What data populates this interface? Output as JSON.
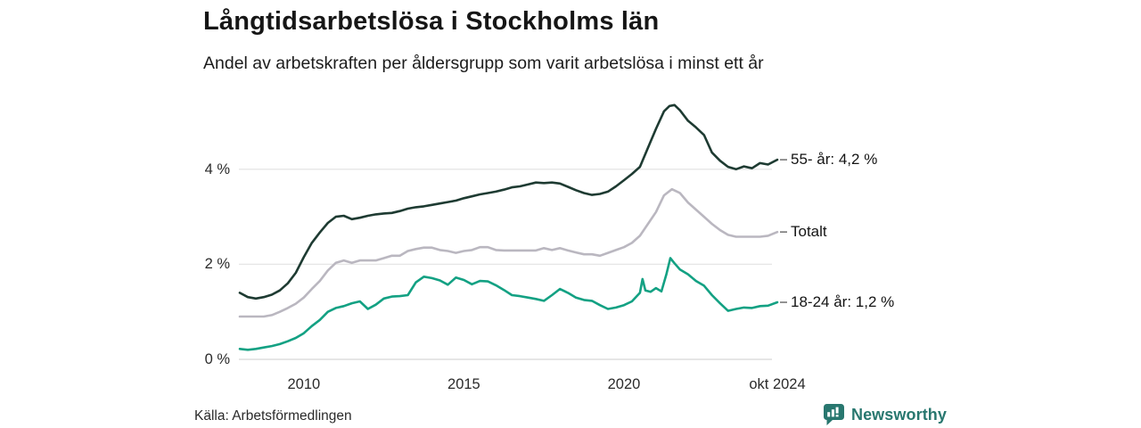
{
  "header": {
    "title": "Långtidsarbetslösa i Stockholms län",
    "subtitle": "Andel av arbetskraften per åldersgrupp som varit arbetslösa i minst ett år"
  },
  "footer": {
    "source": "Källa: Arbetsförmedlingen",
    "brand": "Newsworthy"
  },
  "colors": {
    "series_55": "#1e3b32",
    "series_total": "#bab7c0",
    "series_18_24": "#13a183",
    "gridline": "#e6e6e6",
    "zeroline": "#d8d8d8",
    "connector": "#6f6f6f",
    "brand_teal": "#28776f"
  },
  "chart_data": {
    "type": "line",
    "title": "Långtidsarbetslösa i Stockholms län",
    "subtitle": "Andel av arbetskraften per åldersgrupp som varit arbetslösa i minst ett år",
    "unit": "% av arbetskraften",
    "grid": "horizontal",
    "legend_position": "right of line ends",
    "x_range": {
      "min": 2008.0,
      "max": 2024.79
    },
    "y_range": {
      "min": 0,
      "max": 5.6
    },
    "x_ticks": [
      {
        "t": 2010,
        "label": "2010"
      },
      {
        "t": 2015,
        "label": "2015"
      },
      {
        "t": 2020,
        "label": "2020"
      },
      {
        "t": 2024.79,
        "label": "okt 2024"
      }
    ],
    "y_ticks": [
      {
        "v": 0,
        "label": "0 %"
      },
      {
        "v": 2,
        "label": "2 %"
      },
      {
        "v": 4,
        "label": "4 %"
      }
    ],
    "series": [
      {
        "name": "55- år",
        "legend_label": "55- år: 4,2 %",
        "end_value": 4.2,
        "color": "#1e3b32",
        "points": [
          [
            2008.0,
            1.4
          ],
          [
            2008.25,
            1.31
          ],
          [
            2008.5,
            1.28
          ],
          [
            2008.75,
            1.31
          ],
          [
            2009.0,
            1.36
          ],
          [
            2009.25,
            1.45
          ],
          [
            2009.5,
            1.6
          ],
          [
            2009.75,
            1.82
          ],
          [
            2010.0,
            2.15
          ],
          [
            2010.25,
            2.45
          ],
          [
            2010.5,
            2.67
          ],
          [
            2010.75,
            2.87
          ],
          [
            2011.0,
            3.0
          ],
          [
            2011.25,
            3.02
          ],
          [
            2011.5,
            2.95
          ],
          [
            2011.75,
            2.98
          ],
          [
            2012.0,
            3.02
          ],
          [
            2012.25,
            3.05
          ],
          [
            2012.5,
            3.07
          ],
          [
            2012.75,
            3.08
          ],
          [
            2013.0,
            3.12
          ],
          [
            2013.25,
            3.17
          ],
          [
            2013.5,
            3.2
          ],
          [
            2013.75,
            3.22
          ],
          [
            2014.0,
            3.25
          ],
          [
            2014.25,
            3.28
          ],
          [
            2014.5,
            3.31
          ],
          [
            2014.75,
            3.34
          ],
          [
            2015.0,
            3.39
          ],
          [
            2015.25,
            3.43
          ],
          [
            2015.5,
            3.47
          ],
          [
            2015.75,
            3.5
          ],
          [
            2016.0,
            3.53
          ],
          [
            2016.25,
            3.57
          ],
          [
            2016.5,
            3.62
          ],
          [
            2016.75,
            3.64
          ],
          [
            2017.0,
            3.68
          ],
          [
            2017.25,
            3.72
          ],
          [
            2017.5,
            3.71
          ],
          [
            2017.75,
            3.72
          ],
          [
            2018.0,
            3.7
          ],
          [
            2018.25,
            3.63
          ],
          [
            2018.5,
            3.56
          ],
          [
            2018.75,
            3.5
          ],
          [
            2019.0,
            3.46
          ],
          [
            2019.25,
            3.48
          ],
          [
            2019.5,
            3.53
          ],
          [
            2019.75,
            3.64
          ],
          [
            2020.0,
            3.77
          ],
          [
            2020.25,
            3.9
          ],
          [
            2020.5,
            4.05
          ],
          [
            2020.75,
            4.45
          ],
          [
            2021.0,
            4.85
          ],
          [
            2021.25,
            5.22
          ],
          [
            2021.42,
            5.33
          ],
          [
            2021.58,
            5.35
          ],
          [
            2021.75,
            5.24
          ],
          [
            2022.0,
            5.02
          ],
          [
            2022.25,
            4.88
          ],
          [
            2022.5,
            4.72
          ],
          [
            2022.75,
            4.35
          ],
          [
            2023.0,
            4.18
          ],
          [
            2023.25,
            4.05
          ],
          [
            2023.5,
            4.0
          ],
          [
            2023.75,
            4.06
          ],
          [
            2024.0,
            4.02
          ],
          [
            2024.25,
            4.13
          ],
          [
            2024.5,
            4.1
          ],
          [
            2024.79,
            4.2
          ]
        ]
      },
      {
        "name": "Totalt",
        "legend_label": "Totalt",
        "end_value": 2.68,
        "color": "#bab7c0",
        "points": [
          [
            2008.0,
            0.9
          ],
          [
            2008.25,
            0.9
          ],
          [
            2008.5,
            0.9
          ],
          [
            2008.75,
            0.9
          ],
          [
            2009.0,
            0.93
          ],
          [
            2009.25,
            1.0
          ],
          [
            2009.5,
            1.08
          ],
          [
            2009.75,
            1.17
          ],
          [
            2010.0,
            1.3
          ],
          [
            2010.25,
            1.48
          ],
          [
            2010.5,
            1.65
          ],
          [
            2010.75,
            1.87
          ],
          [
            2011.0,
            2.03
          ],
          [
            2011.25,
            2.08
          ],
          [
            2011.5,
            2.03
          ],
          [
            2011.75,
            2.08
          ],
          [
            2012.0,
            2.08
          ],
          [
            2012.25,
            2.08
          ],
          [
            2012.5,
            2.13
          ],
          [
            2012.75,
            2.18
          ],
          [
            2013.0,
            2.18
          ],
          [
            2013.25,
            2.28
          ],
          [
            2013.5,
            2.32
          ],
          [
            2013.75,
            2.35
          ],
          [
            2014.0,
            2.35
          ],
          [
            2014.25,
            2.3
          ],
          [
            2014.5,
            2.28
          ],
          [
            2014.75,
            2.24
          ],
          [
            2015.0,
            2.28
          ],
          [
            2015.25,
            2.3
          ],
          [
            2015.5,
            2.36
          ],
          [
            2015.75,
            2.36
          ],
          [
            2016.0,
            2.3
          ],
          [
            2016.25,
            2.29
          ],
          [
            2016.5,
            2.29
          ],
          [
            2016.75,
            2.29
          ],
          [
            2017.0,
            2.29
          ],
          [
            2017.25,
            2.29
          ],
          [
            2017.5,
            2.34
          ],
          [
            2017.75,
            2.3
          ],
          [
            2018.0,
            2.34
          ],
          [
            2018.25,
            2.29
          ],
          [
            2018.5,
            2.25
          ],
          [
            2018.75,
            2.21
          ],
          [
            2019.0,
            2.21
          ],
          [
            2019.25,
            2.18
          ],
          [
            2019.5,
            2.24
          ],
          [
            2019.75,
            2.3
          ],
          [
            2020.0,
            2.36
          ],
          [
            2020.25,
            2.45
          ],
          [
            2020.5,
            2.6
          ],
          [
            2020.75,
            2.85
          ],
          [
            2021.0,
            3.1
          ],
          [
            2021.25,
            3.45
          ],
          [
            2021.5,
            3.58
          ],
          [
            2021.75,
            3.5
          ],
          [
            2022.0,
            3.3
          ],
          [
            2022.25,
            3.15
          ],
          [
            2022.5,
            3.0
          ],
          [
            2022.75,
            2.85
          ],
          [
            2023.0,
            2.72
          ],
          [
            2023.25,
            2.62
          ],
          [
            2023.5,
            2.58
          ],
          [
            2023.75,
            2.58
          ],
          [
            2024.0,
            2.58
          ],
          [
            2024.25,
            2.58
          ],
          [
            2024.5,
            2.6
          ],
          [
            2024.79,
            2.68
          ]
        ]
      },
      {
        "name": "18-24 år",
        "legend_label": "18-24 år: 1,2 %",
        "end_value": 1.2,
        "color": "#13a183",
        "points": [
          [
            2008.0,
            0.22
          ],
          [
            2008.25,
            0.2
          ],
          [
            2008.5,
            0.22
          ],
          [
            2008.75,
            0.25
          ],
          [
            2009.0,
            0.28
          ],
          [
            2009.25,
            0.32
          ],
          [
            2009.5,
            0.38
          ],
          [
            2009.75,
            0.45
          ],
          [
            2010.0,
            0.55
          ],
          [
            2010.25,
            0.7
          ],
          [
            2010.5,
            0.83
          ],
          [
            2010.75,
            1.0
          ],
          [
            2011.0,
            1.08
          ],
          [
            2011.25,
            1.12
          ],
          [
            2011.5,
            1.18
          ],
          [
            2011.75,
            1.22
          ],
          [
            2012.0,
            1.06
          ],
          [
            2012.25,
            1.15
          ],
          [
            2012.5,
            1.28
          ],
          [
            2012.75,
            1.32
          ],
          [
            2013.0,
            1.33
          ],
          [
            2013.25,
            1.35
          ],
          [
            2013.5,
            1.62
          ],
          [
            2013.75,
            1.74
          ],
          [
            2014.0,
            1.71
          ],
          [
            2014.25,
            1.66
          ],
          [
            2014.5,
            1.57
          ],
          [
            2014.75,
            1.72
          ],
          [
            2015.0,
            1.67
          ],
          [
            2015.25,
            1.58
          ],
          [
            2015.5,
            1.65
          ],
          [
            2015.75,
            1.64
          ],
          [
            2016.0,
            1.56
          ],
          [
            2016.25,
            1.46
          ],
          [
            2016.5,
            1.35
          ],
          [
            2016.75,
            1.33
          ],
          [
            2017.0,
            1.3
          ],
          [
            2017.25,
            1.27
          ],
          [
            2017.5,
            1.23
          ],
          [
            2017.75,
            1.35
          ],
          [
            2018.0,
            1.48
          ],
          [
            2018.25,
            1.4
          ],
          [
            2018.5,
            1.3
          ],
          [
            2018.75,
            1.25
          ],
          [
            2019.0,
            1.23
          ],
          [
            2019.25,
            1.14
          ],
          [
            2019.5,
            1.06
          ],
          [
            2019.75,
            1.09
          ],
          [
            2020.0,
            1.14
          ],
          [
            2020.25,
            1.22
          ],
          [
            2020.5,
            1.4
          ],
          [
            2020.58,
            1.69
          ],
          [
            2020.67,
            1.45
          ],
          [
            2020.83,
            1.42
          ],
          [
            2021.0,
            1.5
          ],
          [
            2021.17,
            1.43
          ],
          [
            2021.33,
            1.8
          ],
          [
            2021.45,
            2.13
          ],
          [
            2021.58,
            2.02
          ],
          [
            2021.75,
            1.89
          ],
          [
            2022.0,
            1.79
          ],
          [
            2022.25,
            1.65
          ],
          [
            2022.5,
            1.55
          ],
          [
            2022.75,
            1.35
          ],
          [
            2023.0,
            1.18
          ],
          [
            2023.25,
            1.02
          ],
          [
            2023.5,
            1.06
          ],
          [
            2023.75,
            1.09
          ],
          [
            2024.0,
            1.08
          ],
          [
            2024.25,
            1.12
          ],
          [
            2024.5,
            1.13
          ],
          [
            2024.79,
            1.2
          ]
        ]
      }
    ]
  }
}
